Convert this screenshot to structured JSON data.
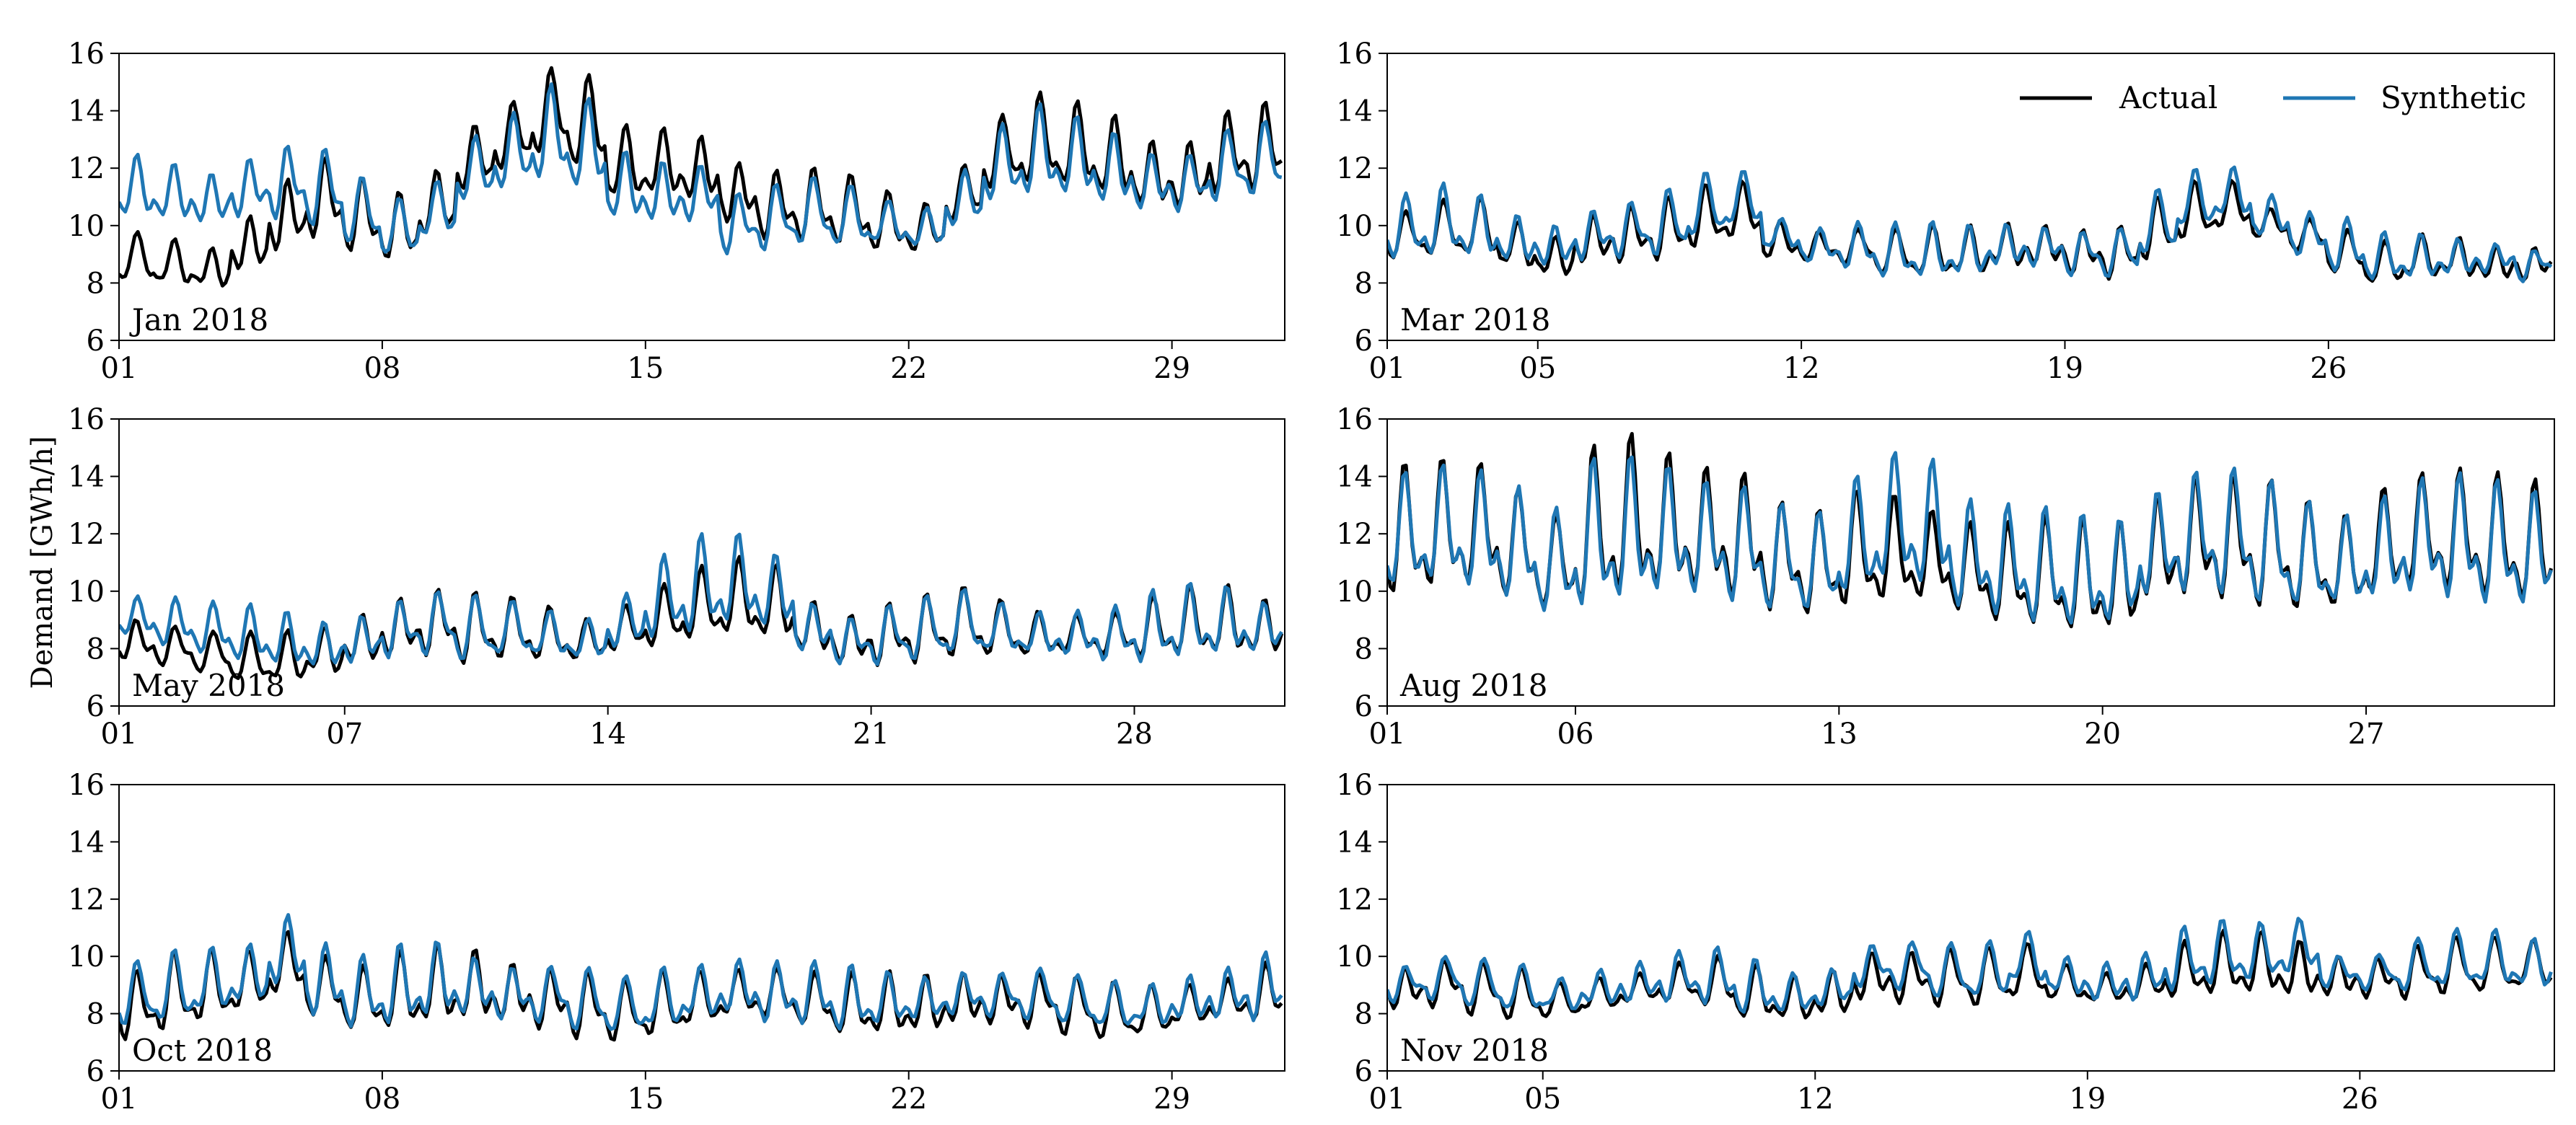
{
  "figure": {
    "ylabel": "Demand [GWh/h]",
    "legend": {
      "placement": "top-right of Mar 2018 panel",
      "entries": [
        {
          "name": "Actual",
          "color": "#000000"
        },
        {
          "name": "Synthetic",
          "color": "#1f77b4"
        }
      ]
    }
  },
  "chart_data": [
    {
      "type": "line",
      "title": "Jan 2018",
      "days_in_month": 31,
      "xticks": [
        "01",
        "08",
        "15",
        "22",
        "29"
      ],
      "xtick_days": [
        1,
        8,
        15,
        22,
        29
      ],
      "ylim": [
        6,
        16
      ],
      "yticks": [
        6,
        8,
        10,
        12,
        14,
        16
      ],
      "series": [
        {
          "name": "Actual",
          "daily_mean": [
            8.8,
            8.6,
            8.4,
            9.2,
            10.2,
            10.8,
            10.2,
            9.8,
            10.6,
            12.2,
            13.0,
            13.8,
            13.4,
            12.0,
            12.0,
            11.8,
            11.0,
            10.6,
            10.6,
            10.4,
            10.0,
            9.8,
            11.0,
            12.4,
            12.8,
            12.6,
            12.2,
            11.6,
            11.6,
            12.4,
            12.6
          ],
          "amplitude": [
            1.0,
            1.0,
            1.0,
            1.4,
            1.6,
            1.6,
            1.4,
            1.4,
            1.6,
            1.8,
            1.8,
            2.0,
            2.0,
            1.6,
            1.6,
            1.6,
            1.4,
            1.4,
            1.4,
            1.4,
            1.4,
            1.4,
            1.6,
            1.8,
            2.0,
            1.8,
            1.8,
            1.6,
            1.6,
            1.8,
            1.8
          ]
        },
        {
          "name": "Synthetic",
          "daily_mean": [
            11.2,
            11.0,
            10.8,
            11.2,
            11.4,
            11.2,
            10.4,
            9.8,
            10.4,
            11.8,
            12.4,
            13.0,
            12.6,
            11.2,
            11.0,
            11.0,
            10.0,
            10.2,
            10.4,
            10.2,
            10.0,
            9.8,
            10.8,
            12.0,
            12.4,
            12.2,
            11.8,
            11.4,
            11.4,
            12.0,
            12.2
          ],
          "amplitude": [
            1.2,
            1.2,
            1.2,
            1.4,
            1.6,
            1.6,
            1.4,
            1.4,
            1.6,
            1.8,
            1.8,
            2.0,
            1.8,
            1.4,
            1.4,
            1.4,
            1.4,
            1.4,
            1.4,
            1.4,
            1.2,
            1.2,
            1.4,
            1.6,
            1.8,
            1.6,
            1.6,
            1.4,
            1.4,
            1.6,
            1.6
          ]
        }
      ]
    },
    {
      "type": "line",
      "title": "Mar 2018",
      "days_in_month": 31,
      "xticks": [
        "01",
        "05",
        "12",
        "19",
        "26"
      ],
      "xtick_days": [
        1,
        5,
        12,
        19,
        26
      ],
      "ylim": [
        6,
        16
      ],
      "yticks": [
        6,
        8,
        10,
        12,
        14,
        16
      ],
      "series": [
        {
          "name": "Actual",
          "daily_mean": [
            9.6,
            9.8,
            9.8,
            9.2,
            8.8,
            9.4,
            9.6,
            9.8,
            10.2,
            10.4,
            9.4,
            9.2,
            9.2,
            9.0,
            9.0,
            9.0,
            9.2,
            9.2,
            9.0,
            9.0,
            9.8,
            10.4,
            10.6,
            10.0,
            9.6,
            9.0,
            8.6,
            8.8,
            8.8,
            8.6,
            8.6
          ],
          "amplitude": [
            1.2,
            1.2,
            1.2,
            1.0,
            1.0,
            1.2,
            1.2,
            1.2,
            1.2,
            1.2,
            1.0,
            1.0,
            1.0,
            1.0,
            1.0,
            1.0,
            1.0,
            1.0,
            1.0,
            1.0,
            1.2,
            1.2,
            1.2,
            1.0,
            1.0,
            1.0,
            0.8,
            0.8,
            0.8,
            0.8,
            0.8
          ]
        },
        {
          "name": "Synthetic",
          "daily_mean": [
            9.8,
            10.0,
            9.8,
            9.4,
            9.2,
            9.6,
            9.8,
            10.0,
            10.6,
            10.8,
            9.6,
            9.2,
            9.2,
            9.0,
            9.0,
            9.0,
            9.2,
            9.2,
            9.0,
            9.0,
            10.0,
            10.8,
            11.0,
            10.2,
            9.6,
            9.2,
            8.8,
            8.8,
            8.8,
            8.8,
            8.6
          ],
          "amplitude": [
            1.4,
            1.4,
            1.2,
            1.0,
            1.0,
            1.2,
            1.2,
            1.4,
            1.4,
            1.4,
            1.0,
            1.0,
            1.0,
            1.0,
            1.0,
            1.0,
            1.0,
            1.0,
            1.0,
            1.0,
            1.4,
            1.4,
            1.4,
            1.2,
            1.0,
            1.0,
            0.8,
            0.8,
            0.8,
            0.8,
            0.8
          ]
        }
      ]
    },
    {
      "type": "line",
      "title": "May 2018",
      "days_in_month": 31,
      "xticks": [
        "01",
        "07",
        "14",
        "21",
        "28"
      ],
      "xtick_days": [
        1,
        7,
        14,
        21,
        28
      ],
      "ylim": [
        6,
        16
      ],
      "yticks": [
        6,
        8,
        10,
        12,
        14,
        16
      ],
      "series": [
        {
          "name": "Actual",
          "daily_mean": [
            8.2,
            8.0,
            7.8,
            7.6,
            7.6,
            7.8,
            8.2,
            8.6,
            8.8,
            8.6,
            8.6,
            8.4,
            8.2,
            8.6,
            9.0,
            9.4,
            9.6,
            9.4,
            8.6,
            8.2,
            8.4,
            8.6,
            8.8,
            8.6,
            8.4,
            8.4,
            8.4,
            8.6,
            8.8,
            8.8,
            8.6
          ],
          "amplitude": [
            1.2,
            1.2,
            1.0,
            1.0,
            1.0,
            1.0,
            1.2,
            1.4,
            1.4,
            1.4,
            1.2,
            1.2,
            1.2,
            1.4,
            1.6,
            1.6,
            1.6,
            1.6,
            1.2,
            1.2,
            1.4,
            1.4,
            1.4,
            1.2,
            1.2,
            1.2,
            1.2,
            1.4,
            1.4,
            1.4,
            1.2
          ]
        },
        {
          "name": "Synthetic",
          "daily_mean": [
            9.0,
            8.8,
            8.6,
            8.4,
            8.2,
            8.0,
            8.2,
            8.6,
            8.8,
            8.6,
            8.6,
            8.4,
            8.2,
            8.8,
            9.6,
            10.0,
            10.2,
            9.8,
            8.6,
            8.2,
            8.4,
            8.6,
            8.8,
            8.6,
            8.4,
            8.4,
            8.4,
            8.6,
            8.8,
            8.8,
            8.6
          ],
          "amplitude": [
            1.2,
            1.2,
            1.0,
            1.0,
            1.0,
            1.0,
            1.2,
            1.4,
            1.4,
            1.4,
            1.2,
            1.2,
            1.2,
            1.4,
            1.8,
            2.0,
            1.8,
            1.6,
            1.2,
            1.2,
            1.4,
            1.4,
            1.4,
            1.2,
            1.2,
            1.2,
            1.2,
            1.4,
            1.4,
            1.4,
            1.2
          ]
        }
      ]
    },
    {
      "type": "line",
      "title": "Aug 2018",
      "days_in_month": 31,
      "xticks": [
        "01",
        "06",
        "13",
        "20",
        "27"
      ],
      "xtick_days": [
        1,
        6,
        13,
        20,
        27
      ],
      "ylim": [
        6,
        16
      ],
      "yticks": [
        6,
        8,
        10,
        12,
        14,
        16
      ],
      "series": [
        {
          "name": "Actual",
          "daily_mean": [
            11.8,
            12.0,
            12.0,
            11.4,
            10.8,
            11.8,
            12.2,
            12.0,
            11.8,
            11.6,
            11.0,
            10.8,
            11.2,
            11.2,
            11.0,
            10.6,
            10.4,
            10.4,
            10.2,
            10.2,
            11.2,
            11.6,
            11.6,
            11.4,
            11.0,
            10.8,
            11.4,
            11.8,
            11.8,
            11.6,
            11.4
          ],
          "amplitude": [
            3.0,
            3.2,
            3.2,
            2.8,
            2.2,
            3.6,
            3.6,
            3.2,
            3.0,
            3.0,
            2.4,
            2.2,
            2.6,
            2.6,
            2.4,
            2.4,
            2.4,
            2.4,
            2.4,
            2.4,
            2.4,
            2.8,
            2.8,
            2.8,
            2.4,
            2.2,
            2.8,
            3.0,
            3.0,
            2.8,
            2.6
          ]
        },
        {
          "name": "Synthetic",
          "daily_mean": [
            11.8,
            12.0,
            11.8,
            11.4,
            10.8,
            11.6,
            11.8,
            11.8,
            11.6,
            11.4,
            11.0,
            10.8,
            11.6,
            12.2,
            12.0,
            11.0,
            10.8,
            10.6,
            10.4,
            10.4,
            11.4,
            11.8,
            11.8,
            11.4,
            11.0,
            10.8,
            11.2,
            11.6,
            11.6,
            11.4,
            11.2
          ],
          "amplitude": [
            2.8,
            3.0,
            3.0,
            2.6,
            2.2,
            3.2,
            3.2,
            3.0,
            2.8,
            2.8,
            2.4,
            2.2,
            2.8,
            3.2,
            3.2,
            2.6,
            2.4,
            2.4,
            2.4,
            2.4,
            2.6,
            3.0,
            3.0,
            2.8,
            2.4,
            2.2,
            2.6,
            2.8,
            2.8,
            2.6,
            2.4
          ]
        }
      ]
    },
    {
      "type": "line",
      "title": "Oct 2018",
      "days_in_month": 31,
      "xticks": [
        "01",
        "08",
        "15",
        "22",
        "29"
      ],
      "xtick_days": [
        1,
        8,
        15,
        22,
        29
      ],
      "ylim": [
        6,
        16
      ],
      "yticks": [
        6,
        8,
        10,
        12,
        14,
        16
      ],
      "series": [
        {
          "name": "Actual",
          "daily_mean": [
            8.2,
            8.6,
            8.8,
            9.0,
            9.6,
            8.8,
            8.4,
            8.6,
            8.8,
            8.8,
            8.6,
            8.4,
            8.2,
            8.0,
            8.2,
            8.4,
            8.6,
            8.6,
            8.4,
            8.2,
            8.2,
            8.2,
            8.4,
            8.4,
            8.4,
            8.2,
            8.0,
            8.0,
            8.2,
            8.4,
            8.6
          ],
          "amplitude": [
            1.4,
            1.6,
            1.6,
            1.6,
            1.8,
            1.6,
            1.4,
            1.6,
            1.6,
            1.6,
            1.4,
            1.4,
            1.4,
            1.2,
            1.4,
            1.4,
            1.4,
            1.4,
            1.2,
            1.2,
            1.2,
            1.2,
            1.2,
            1.2,
            1.2,
            1.2,
            1.2,
            1.2,
            1.2,
            1.2,
            1.4
          ]
        },
        {
          "name": "Synthetic",
          "daily_mean": [
            8.6,
            8.8,
            9.0,
            9.2,
            10.0,
            9.0,
            8.6,
            8.8,
            9.0,
            8.8,
            8.6,
            8.6,
            8.4,
            8.2,
            8.4,
            8.6,
            8.8,
            8.6,
            8.6,
            8.4,
            8.4,
            8.4,
            8.6,
            8.6,
            8.6,
            8.4,
            8.2,
            8.2,
            8.4,
            8.6,
            8.8
          ],
          "amplitude": [
            1.4,
            1.6,
            1.6,
            1.6,
            1.8,
            1.6,
            1.4,
            1.6,
            1.6,
            1.4,
            1.4,
            1.4,
            1.4,
            1.2,
            1.4,
            1.4,
            1.4,
            1.4,
            1.2,
            1.2,
            1.0,
            1.0,
            1.2,
            1.2,
            1.2,
            1.0,
            1.0,
            1.0,
            1.2,
            1.2,
            1.4
          ]
        }
      ]
    },
    {
      "type": "line",
      "title": "Nov 2018",
      "days_in_month": 30,
      "xticks": [
        "01",
        "05",
        "12",
        "19",
        "26"
      ],
      "xtick_days": [
        1,
        5,
        12,
        19,
        26
      ],
      "ylim": [
        6,
        16
      ],
      "yticks": [
        6,
        8,
        10,
        12,
        14,
        16
      ],
      "series": [
        {
          "name": "Actual",
          "daily_mean": [
            8.8,
            9.0,
            8.8,
            8.6,
            8.4,
            8.6,
            8.8,
            9.0,
            9.0,
            8.6,
            8.4,
            8.6,
            9.2,
            9.2,
            9.2,
            9.2,
            9.4,
            9.0,
            8.8,
            9.0,
            9.4,
            9.6,
            9.6,
            9.4,
            9.2,
            9.2,
            9.4,
            9.6,
            9.6,
            9.6
          ],
          "amplitude": [
            1.0,
            1.0,
            1.0,
            1.0,
            0.8,
            1.0,
            1.0,
            1.0,
            1.0,
            1.0,
            0.8,
            1.0,
            1.2,
            1.2,
            1.2,
            1.2,
            1.2,
            1.0,
            1.0,
            1.0,
            1.2,
            1.2,
            1.2,
            1.2,
            1.0,
            1.0,
            1.2,
            1.2,
            1.2,
            1.2
          ]
        },
        {
          "name": "Synthetic",
          "daily_mean": [
            9.0,
            9.2,
            9.0,
            8.8,
            8.6,
            8.8,
            9.0,
            9.2,
            9.2,
            8.8,
            8.6,
            8.8,
            9.6,
            9.6,
            9.4,
            9.4,
            9.8,
            9.2,
            9.0,
            9.2,
            9.8,
            10.0,
            10.0,
            10.2,
            9.4,
            9.4,
            9.6,
            9.8,
            9.8,
            9.6
          ],
          "amplitude": [
            1.0,
            1.0,
            1.0,
            1.0,
            0.8,
            1.0,
            1.0,
            1.0,
            1.0,
            1.0,
            0.8,
            1.0,
            1.2,
            1.2,
            1.2,
            1.2,
            1.2,
            1.0,
            1.0,
            1.0,
            1.2,
            1.2,
            1.2,
            1.4,
            1.0,
            1.0,
            1.2,
            1.2,
            1.2,
            1.2
          ]
        }
      ]
    }
  ]
}
